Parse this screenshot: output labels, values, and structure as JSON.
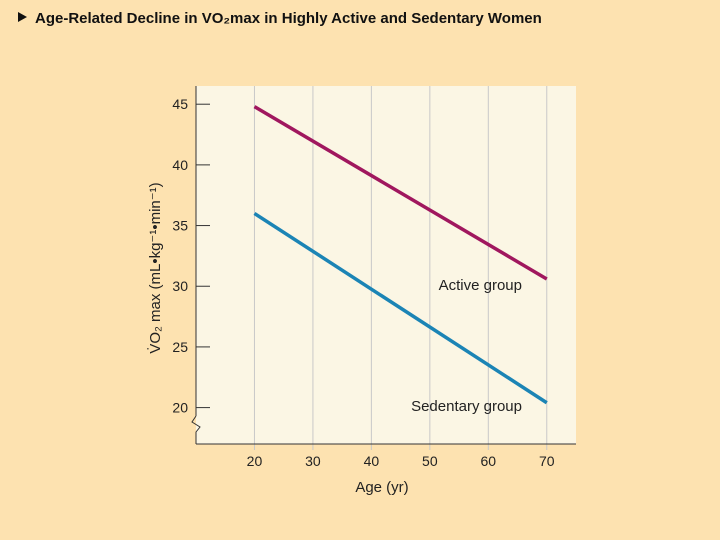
{
  "slide": {
    "title": "Age-Related Decline in VO₂max in Highly Active and Sedentary Women"
  },
  "colors": {
    "background": "#fde2b0",
    "plot_background": "#fbf6e4",
    "grid": "#c8c8c8",
    "active": "#a0175e",
    "sedentary": "#1b84b5"
  },
  "chart_data": {
    "type": "line",
    "title": "Age-Related Decline in VO₂max in Highly Active and Sedentary Women",
    "xlabel": "Age (yr)",
    "ylabel": "V̇O₂ max (mL•kg⁻¹•min⁻¹)",
    "xlim": [
      10,
      75
    ],
    "ylim": [
      17,
      46.5
    ],
    "xticks": [
      "20",
      "30",
      "40",
      "50",
      "60",
      "70"
    ],
    "yticks": [
      "20",
      "25",
      "30",
      "35",
      "40",
      "45"
    ],
    "grid": true,
    "y_axis_break": true,
    "series": [
      {
        "name": "Active group",
        "label": "Active group",
        "x": [
          20,
          70
        ],
        "y": [
          44.8,
          30.6
        ]
      },
      {
        "name": "Sedentary group",
        "label": "Sedentary group",
        "x": [
          20,
          70
        ],
        "y": [
          36.0,
          20.4
        ]
      }
    ]
  }
}
